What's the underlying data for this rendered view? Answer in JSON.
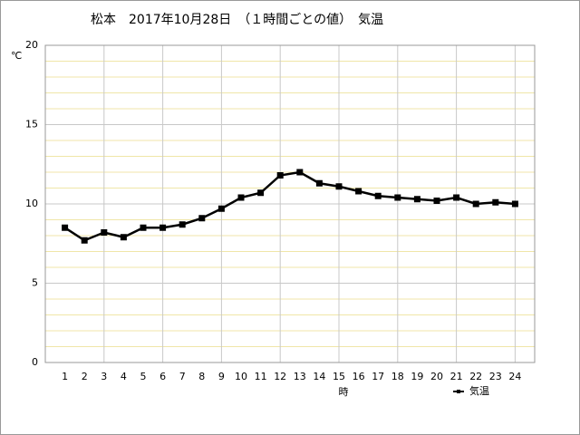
{
  "chart_data": {
    "type": "line",
    "title": "松本　2017年10月28日　（１時間ごとの値）　気温",
    "ylabel": "℃",
    "xlabel": "時",
    "x": [
      1,
      2,
      3,
      4,
      5,
      6,
      7,
      8,
      9,
      10,
      11,
      12,
      13,
      14,
      15,
      16,
      17,
      18,
      19,
      20,
      21,
      22,
      23,
      24
    ],
    "xlim": [
      0,
      25
    ],
    "xticks": [
      1,
      2,
      3,
      4,
      5,
      6,
      7,
      8,
      9,
      10,
      11,
      12,
      13,
      14,
      15,
      16,
      17,
      18,
      19,
      20,
      21,
      22,
      23,
      24
    ],
    "xgrid": [
      3,
      6,
      9,
      12,
      15,
      18,
      21,
      24
    ],
    "ylim": [
      0,
      20
    ],
    "yticks": [
      0,
      5,
      10,
      15,
      20
    ],
    "yminor": [
      1,
      2,
      3,
      4,
      6,
      7,
      8,
      9,
      11,
      12,
      13,
      14,
      16,
      17,
      18,
      19
    ],
    "grid": true,
    "legend": "bottom-right",
    "series": [
      {
        "name": "気温",
        "color": "#000000",
        "values": [
          8.5,
          7.7,
          8.2,
          7.9,
          8.5,
          8.5,
          8.7,
          9.1,
          9.7,
          10.4,
          10.7,
          11.8,
          12.0,
          11.3,
          11.1,
          10.8,
          10.5,
          10.4,
          10.3,
          10.2,
          10.4,
          10.0,
          10.1,
          10.0
        ]
      }
    ]
  }
}
